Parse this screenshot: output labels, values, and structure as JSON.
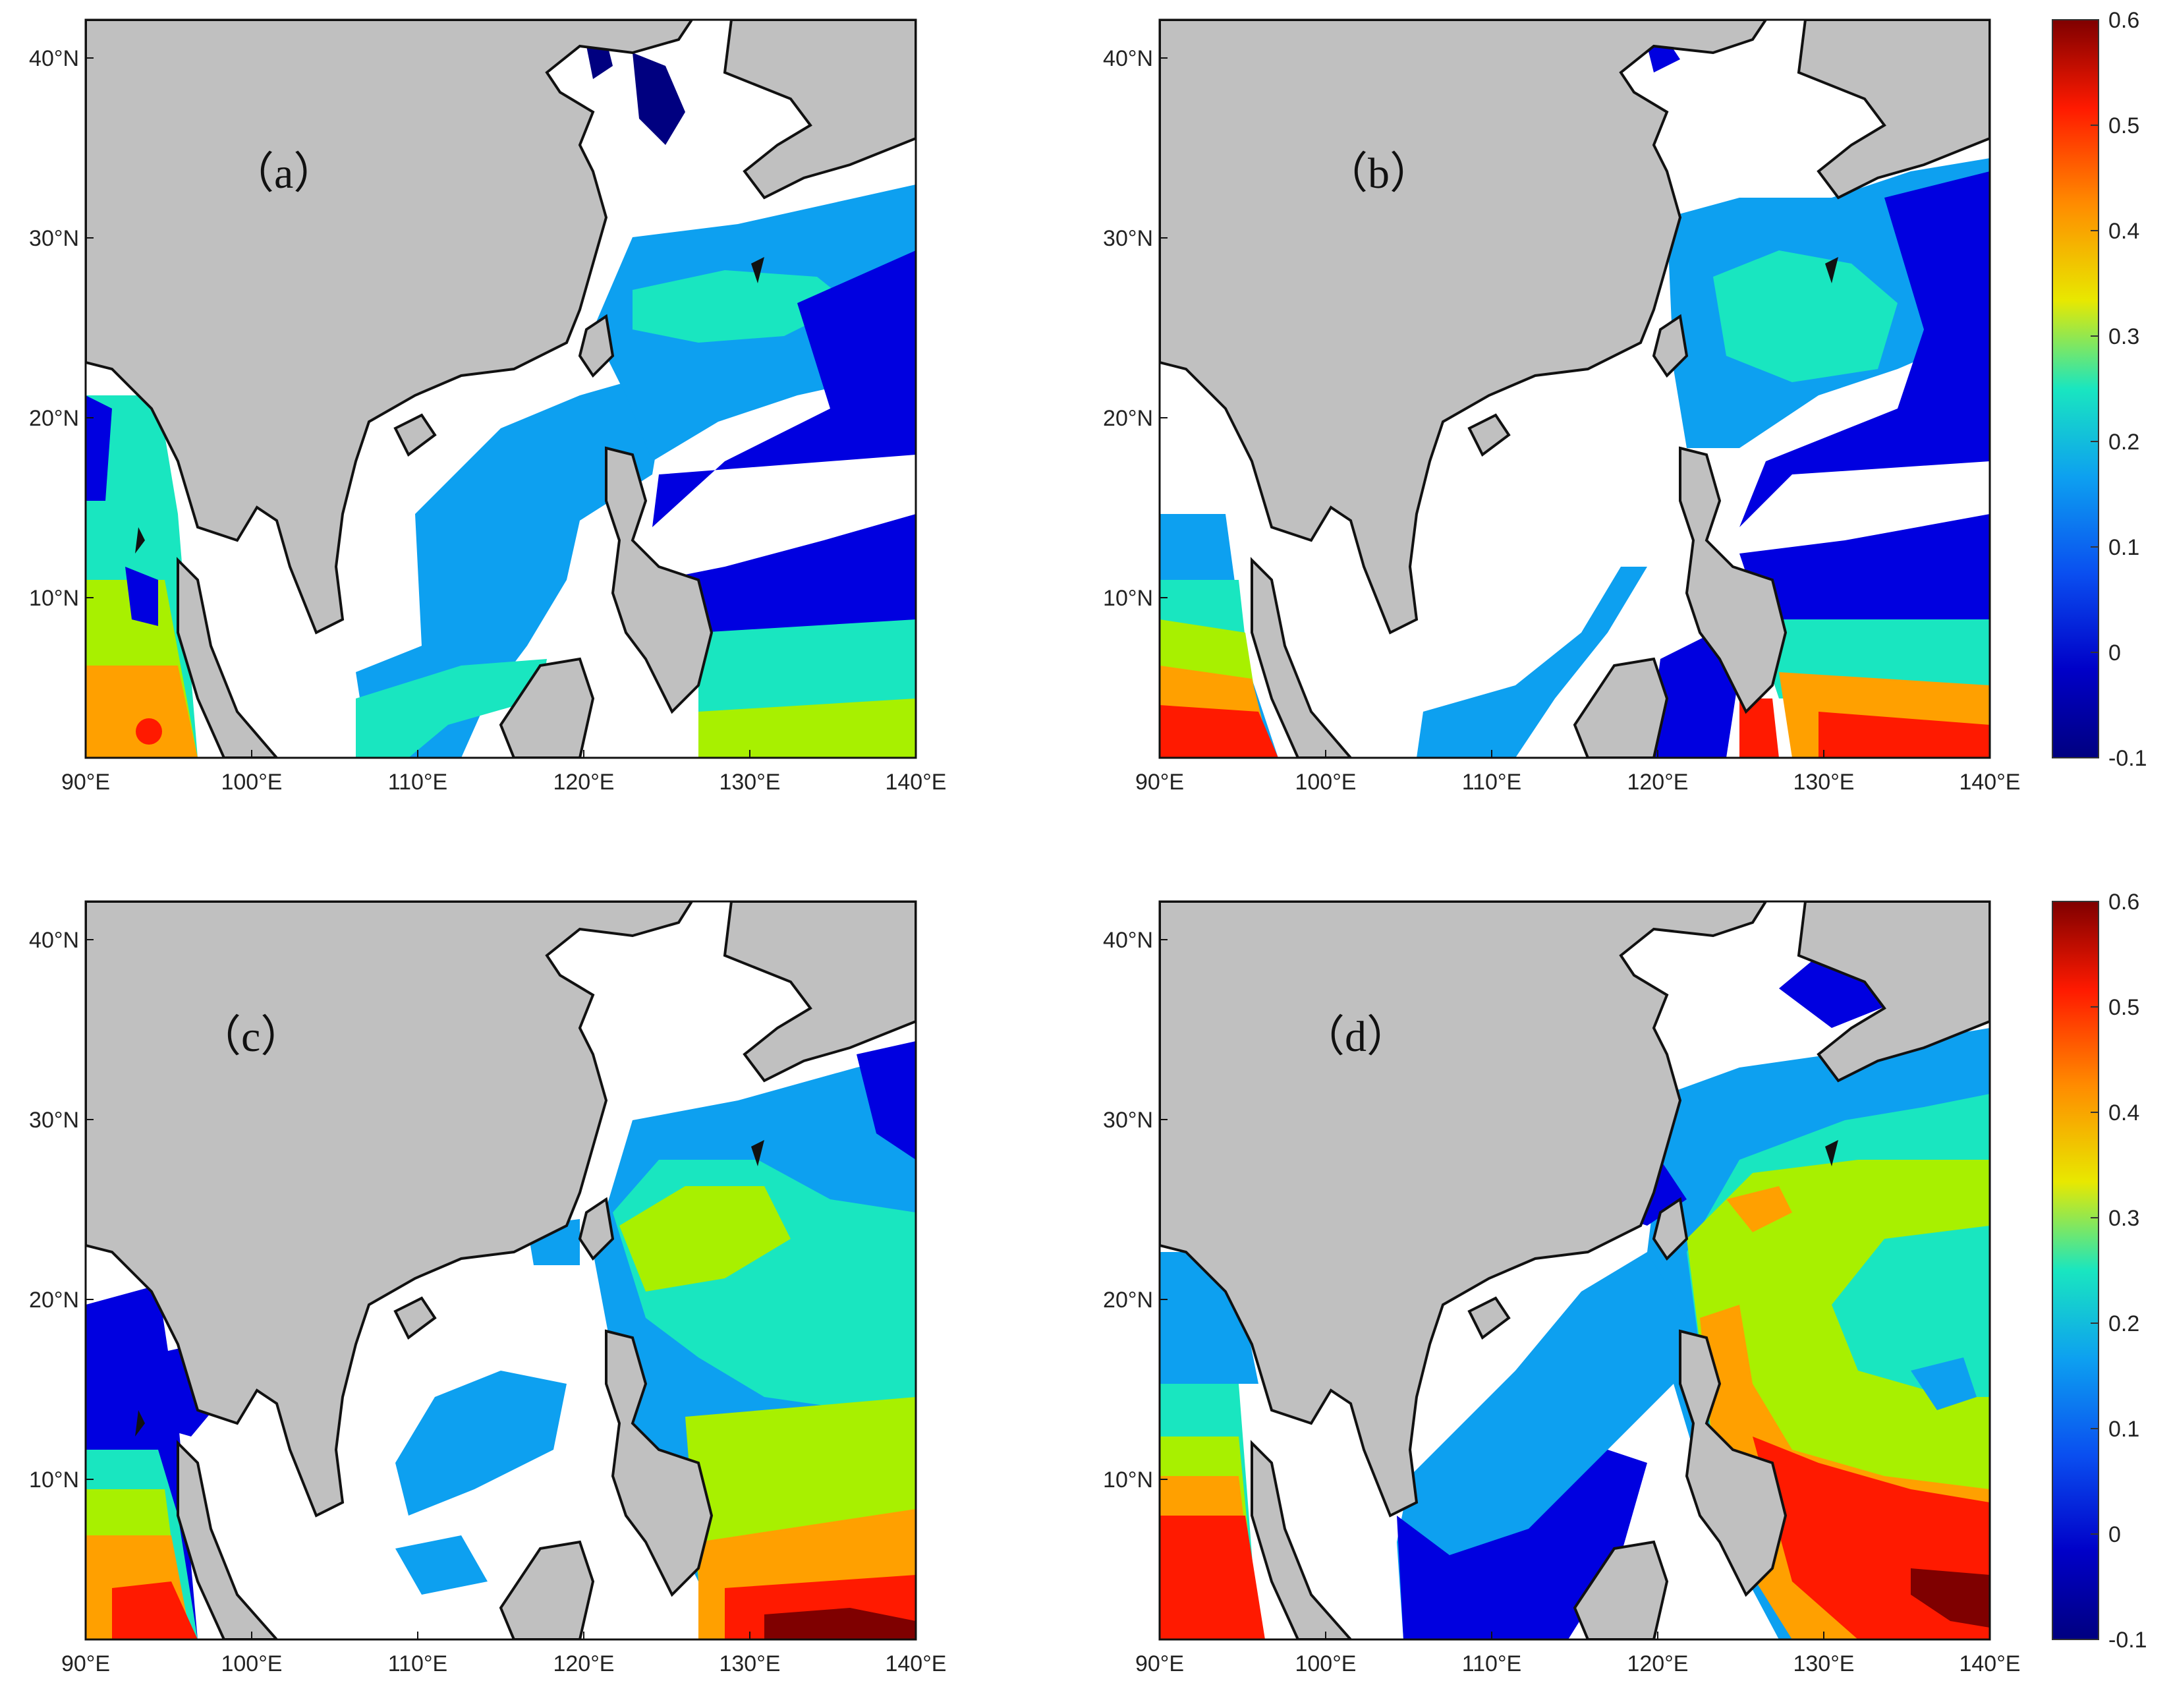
{
  "figure": {
    "panels": [
      {
        "label": "（a）"
      },
      {
        "label": "（b）"
      },
      {
        "label": "（c）"
      },
      {
        "label": "（d）"
      }
    ],
    "x_ticks": [
      "90°E",
      "100°E",
      "110°E",
      "120°E",
      "130°E",
      "140°E"
    ],
    "y_ticks": [
      "40°N",
      "30°N",
      "20°N",
      "10°N"
    ],
    "colorbar_ticks": [
      "0.6",
      "0.5",
      "0.4",
      "0.3",
      "0.2",
      "0.1",
      "0",
      "-0.1"
    ],
    "colorbar_colors": [
      "#7f0000",
      "#ff1a00",
      "#ff8c00",
      "#e8e800",
      "#a8f000",
      "#19e6c0",
      "#0da0f0",
      "#0a4ff0",
      "#0000c8",
      "#000080"
    ],
    "land_color": "#c0c0c0",
    "ocean_no_data_color": "#ffffff"
  }
}
